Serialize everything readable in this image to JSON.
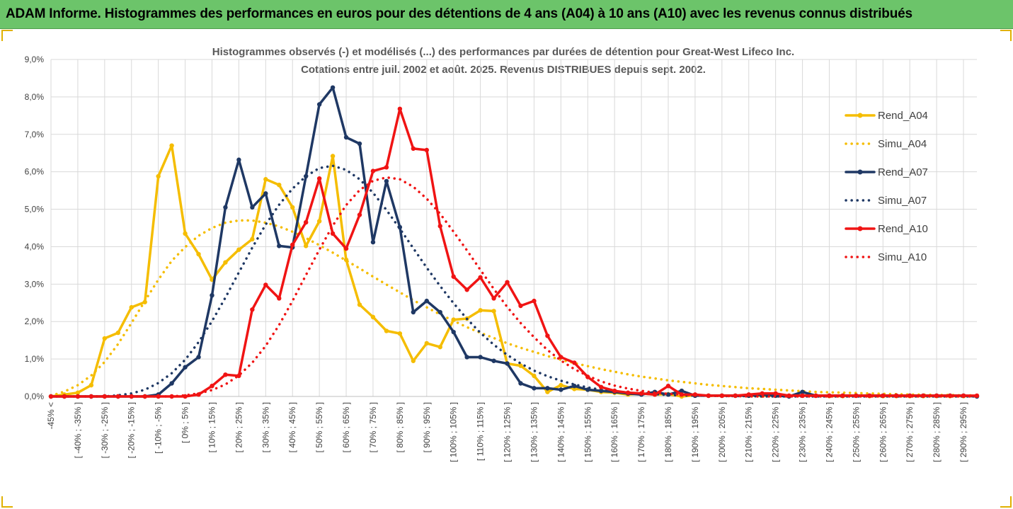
{
  "banner": {
    "title": "ADAM Informe. Histogrammes des performances en euros pour des détentions de 4 ans (A04) à 10 ans (A10) avec les revenus connus distribués"
  },
  "colors": {
    "banner": "#6cc46a",
    "A04": "#f5bd00",
    "A07": "#1f3864",
    "A10": "#f01414"
  },
  "chart_data": {
    "type": "line",
    "title": [
      "Histogrammes observés (-) et modélisés (...) des performances par durées de détention pour Great-West Lifeco Inc.",
      "Cotations entre juil. 2002 et août. 2025. Revenus DISTRIBUES depuis sept. 2002."
    ],
    "xlabel": "",
    "ylabel": "",
    "ylim": [
      0,
      9
    ],
    "yticks": [
      "0,0%",
      "1,0%",
      "2,0%",
      "3,0%",
      "4,0%",
      "5,0%",
      "6,0%",
      "7,0%",
      "8,0%",
      "9,0%"
    ],
    "grid": true,
    "legend_position": "right",
    "categories": [
      "-45% <",
      "[ -45% ; -40% ]",
      "[ -40% ; -35% ]",
      "[ -35% ; -30% ]",
      "[ -30% ; -25% ]",
      "[ -25% ; -20% ]",
      "[ -20% ; -15% ]",
      "[ -15% ; -10% ]",
      "[ -10% ; -5% ]",
      "[ -5% ; 0% ]",
      "[ 0% ; 5% ]",
      "[ 5% ; 10% ]",
      "[ 10% ; 15% ]",
      "[ 15% ; 20% ]",
      "[ 20% ; 25% ]",
      "[ 25% ; 30% ]",
      "[ 30% ; 35% ]",
      "[ 35% ; 40% ]",
      "[ 40% ; 45% ]",
      "[ 45% ; 50% ]",
      "[ 50% ; 55% ]",
      "[ 55% ; 60% ]",
      "[ 60% ; 65% ]",
      "[ 65% ; 70% ]",
      "[ 70% ; 75% ]",
      "[ 75% ; 80% ]",
      "[ 80% ; 85% ]",
      "[ 85% ; 90% ]",
      "[ 90% ; 95% ]",
      "[ 95% ; 100% ]",
      "[ 100% ; 105% ]",
      "[ 105% ; 110% ]",
      "[ 110% ; 115% ]",
      "[ 115% ; 120% ]",
      "[ 120% ; 125% ]",
      "[ 125% ; 130% ]",
      "[ 130% ; 135% ]",
      "[ 135% ; 140% ]",
      "[ 140% ; 145% ]",
      "[ 145% ; 150% ]",
      "[ 150% ; 155% ]",
      "[ 155% ; 160% ]",
      "[ 160% ; 165% ]",
      "[ 165% ; 170% ]",
      "[ 170% ; 175% ]",
      "[ 175% ; 180% ]",
      "[ 180% ; 185% ]",
      "[ 185% ; 190% ]",
      "[ 190% ; 195% ]",
      "[ 195% ; 200% ]",
      "[ 200% ; 205% ]",
      "[ 205% ; 210% ]",
      "[ 210% ; 215% ]",
      "[ 215% ; 220% ]",
      "[ 220% ; 225% ]",
      "[ 225% ; 230% ]",
      "[ 230% ; 235% ]",
      "[ 235% ; 240% ]",
      "[ 240% ; 245% ]",
      "[ 245% ; 250% ]",
      "[ 250% ; 255% ]",
      "[ 255% ; 260% ]",
      "[ 260% ; 265% ]",
      "[ 265% ; 270% ]",
      "[ 270% ; 275% ]",
      "[ 275% ; 280% ]",
      "[ 280% ; 285% ]",
      "[ 285% ; 290% ]",
      "[ 290% ; 295% ]",
      "[ 295% ; 300% ]"
    ],
    "series": [
      {
        "name": "Rend_A04",
        "style": "solid",
        "color": "#f5bd00",
        "values": [
          0,
          0.05,
          0.1,
          0.3,
          1.55,
          1.7,
          2.38,
          2.52,
          5.88,
          6.7,
          4.35,
          3.8,
          3.12,
          3.58,
          3.92,
          4.2,
          5.8,
          5.65,
          5.05,
          4.02,
          4.68,
          6.42,
          3.65,
          2.45,
          2.12,
          1.75,
          1.68,
          0.95,
          1.42,
          1.32,
          2.05,
          2.08,
          2.3,
          2.28,
          0.88,
          0.82,
          0.55,
          0.12,
          0.3,
          0.2,
          0.18,
          0.12,
          0.1,
          0.05,
          0.08,
          0.05,
          0.06,
          0,
          0.03,
          0.02,
          0.02,
          0.02,
          0.02,
          0.02,
          0.02,
          0.02,
          0.02,
          0.02,
          0.01,
          0.01,
          0.02,
          0.01,
          0.01,
          0.01,
          0.01,
          0.01,
          0.01,
          0.01,
          0.01,
          0.01
        ]
      },
      {
        "name": "Simu_A04",
        "style": "dotted",
        "color": "#f5bd00",
        "values": [
          0.02,
          0.13,
          0.3,
          0.56,
          0.92,
          1.4,
          1.96,
          2.55,
          3.12,
          3.62,
          3.99,
          4.29,
          4.5,
          4.64,
          4.7,
          4.7,
          4.64,
          4.54,
          4.4,
          4.23,
          4.04,
          3.84,
          3.63,
          3.42,
          3.2,
          2.99,
          2.78,
          2.57,
          2.38,
          2.19,
          2.02,
          1.85,
          1.7,
          1.56,
          1.42,
          1.3,
          1.19,
          1.08,
          0.98,
          0.89,
          0.81,
          0.73,
          0.66,
          0.59,
          0.53,
          0.48,
          0.43,
          0.39,
          0.35,
          0.31,
          0.28,
          0.25,
          0.22,
          0.2,
          0.18,
          0.16,
          0.14,
          0.12,
          0.11,
          0.1,
          0.09,
          0.08,
          0.07,
          0.06,
          0.05,
          0.05,
          0.04,
          0.04,
          0.03,
          0.03
        ]
      },
      {
        "name": "Rend_A07",
        "style": "solid",
        "color": "#1f3864",
        "values": [
          0,
          0,
          0,
          0,
          0,
          0,
          0,
          0,
          0.05,
          0.35,
          0.78,
          1.05,
          2.7,
          5.05,
          6.32,
          5.05,
          5.42,
          4.02,
          3.98,
          5.88,
          7.8,
          8.25,
          6.92,
          6.75,
          4.12,
          5.75,
          4.52,
          2.25,
          2.55,
          2.25,
          1.72,
          1.05,
          1.05,
          0.95,
          0.88,
          0.35,
          0.22,
          0.22,
          0.18,
          0.28,
          0.18,
          0.15,
          0.12,
          0.08,
          0.05,
          0.12,
          0.05,
          0.15,
          0.02,
          0.02,
          0.02,
          0.02,
          0.02,
          0.05,
          0.02,
          0,
          0.12,
          0.02,
          0.02,
          0.02,
          0.02,
          0.02,
          0.02,
          0.02,
          0.02,
          0.02,
          0.02,
          0.02,
          0.02,
          0
        ]
      },
      {
        "name": "Simu_A07",
        "style": "dotted",
        "color": "#1f3864",
        "values": [
          0,
          0,
          0,
          0,
          0,
          0.03,
          0.08,
          0.18,
          0.36,
          0.62,
          0.98,
          1.45,
          2.01,
          2.64,
          3.31,
          3.97,
          4.59,
          5.12,
          5.55,
          5.88,
          6.1,
          6.16,
          6.05,
          5.8,
          5.44,
          4.98,
          4.48,
          3.96,
          3.44,
          2.95,
          2.49,
          2.07,
          1.7,
          1.38,
          1.11,
          0.88,
          0.69,
          0.54,
          0.42,
          0.32,
          0.24,
          0.18,
          0.14,
          0.1,
          0.08,
          0.06,
          0.04,
          0.03,
          0.02,
          0.02,
          0.01,
          0.01,
          0.01,
          0,
          0,
          0,
          0,
          0,
          0,
          0,
          0,
          0,
          0,
          0,
          0,
          0,
          0,
          0,
          0,
          0
        ]
      },
      {
        "name": "Rend_A10",
        "style": "solid",
        "color": "#f01414",
        "values": [
          0,
          0,
          0,
          0,
          0,
          0,
          0,
          0,
          0,
          0,
          0,
          0.05,
          0.28,
          0.58,
          0.55,
          2.32,
          2.98,
          2.62,
          4.05,
          4.65,
          5.82,
          4.35,
          3.95,
          4.85,
          6.02,
          6.12,
          7.68,
          6.62,
          6.58,
          4.55,
          3.2,
          2.85,
          3.18,
          2.62,
          3.05,
          2.42,
          2.55,
          1.62,
          1.05,
          0.9,
          0.52,
          0.25,
          0.15,
          0.1,
          0.08,
          0.05,
          0.28,
          0.05,
          0.05,
          0.02,
          0.02,
          0.02,
          0.05,
          0.08,
          0.08,
          0.02,
          0.02,
          0.02,
          0.02,
          0.02,
          0.02,
          0.02,
          0.02,
          0.02,
          0.02,
          0.02,
          0.02,
          0.02,
          0.02,
          0.02
        ]
      },
      {
        "name": "Simu_A10",
        "style": "dotted",
        "color": "#f01414",
        "values": [
          0,
          0,
          0,
          0,
          0,
          0,
          0,
          0,
          0,
          0,
          0.03,
          0.08,
          0.17,
          0.32,
          0.56,
          0.9,
          1.35,
          1.91,
          2.55,
          3.24,
          3.92,
          4.56,
          5.11,
          5.51,
          5.76,
          5.85,
          5.8,
          5.6,
          5.28,
          4.88,
          4.4,
          3.9,
          3.38,
          2.87,
          2.39,
          1.96,
          1.58,
          1.24,
          0.96,
          0.73,
          0.55,
          0.4,
          0.29,
          0.21,
          0.15,
          0.1,
          0.07,
          0.05,
          0.03,
          0.02,
          0.01,
          0.01,
          0,
          0,
          0,
          0,
          0,
          0,
          0,
          0,
          0,
          0,
          0,
          0,
          0,
          0,
          0,
          0,
          0,
          0
        ]
      }
    ]
  }
}
